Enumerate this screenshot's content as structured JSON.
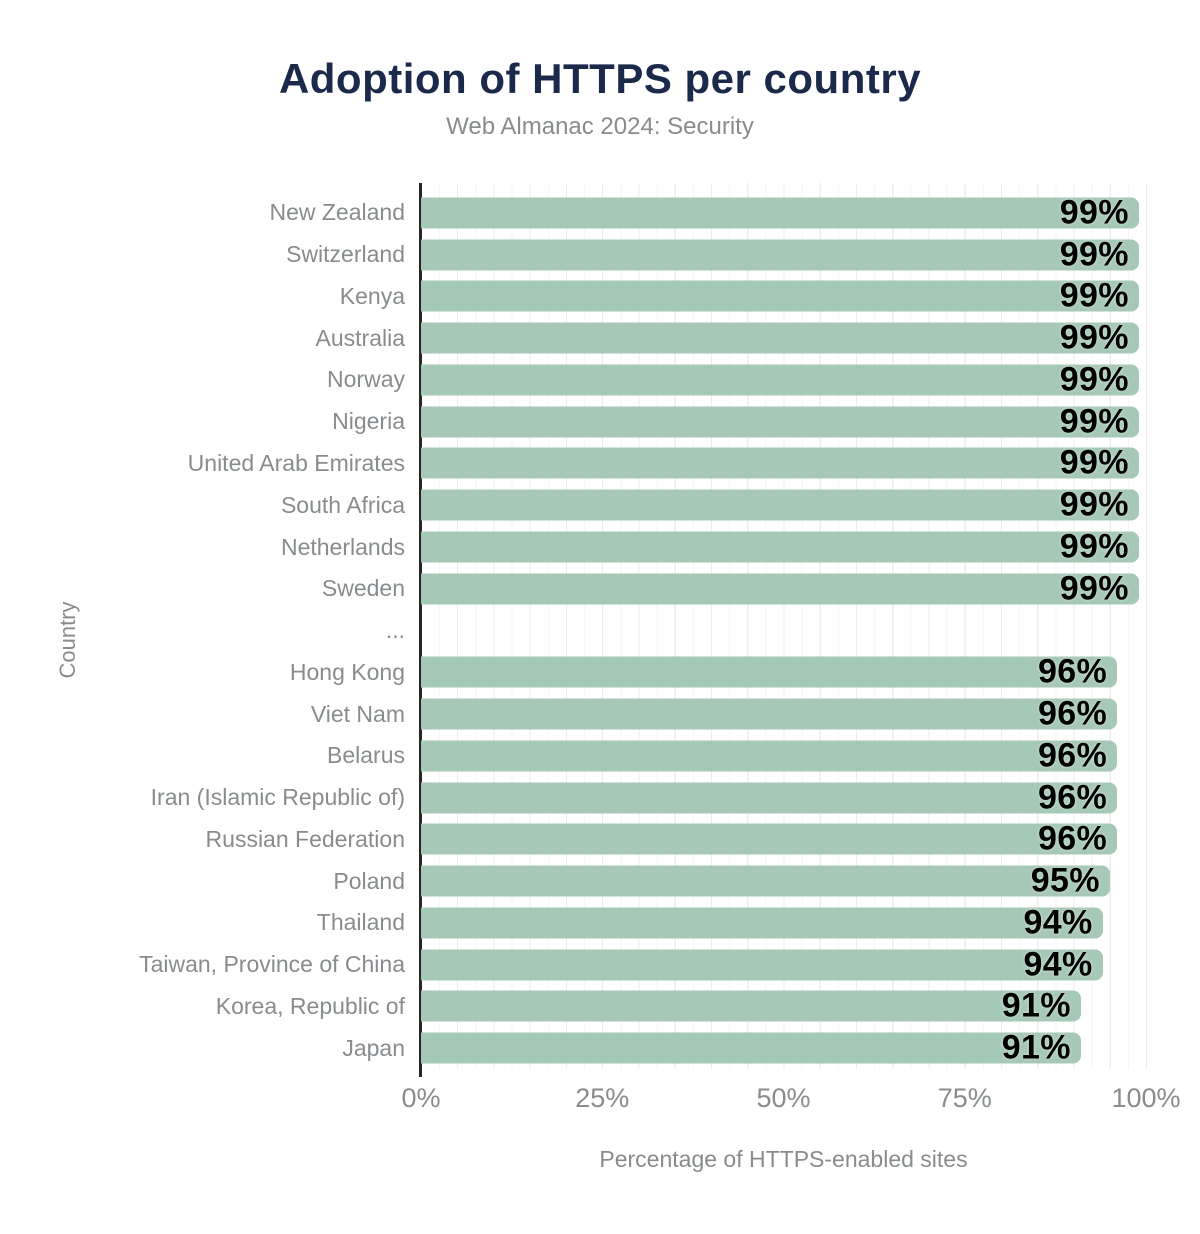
{
  "title": "Adoption of HTTPS per country",
  "subtitle": "Web Almanac 2024: Security",
  "chart_data": {
    "type": "bar",
    "orientation": "horizontal",
    "title": "Adoption of HTTPS per country",
    "subtitle": "Web Almanac 2024: Security",
    "xlabel": "Percentage of HTTPS-enabled sites",
    "ylabel": "Country",
    "xlim": [
      0,
      100
    ],
    "x_tick_labels": [
      "0%",
      "25%",
      "50%",
      "75%",
      "100%"
    ],
    "grid": "vertical gridlines every 5%",
    "legend": "none",
    "categories": [
      "New Zealand",
      "Switzerland",
      "Kenya",
      "Australia",
      "Norway",
      "Nigeria",
      "United Arab Emirates",
      "South Africa",
      "Netherlands",
      "Sweden",
      "...",
      "Hong Kong",
      "Viet Nam",
      "Belarus",
      "Iran (Islamic Republic of)",
      "Russian Federation",
      "Poland",
      "Thailand",
      "Taiwan, Province of China",
      "Korea, Republic of",
      "Japan"
    ],
    "values": [
      99,
      99,
      99,
      99,
      99,
      99,
      99,
      99,
      99,
      99,
      null,
      96,
      96,
      96,
      96,
      96,
      95,
      94,
      94,
      91,
      91
    ],
    "value_labels": [
      "99%",
      "99%",
      "99%",
      "99%",
      "99%",
      "99%",
      "99%",
      "99%",
      "99%",
      "99%",
      "",
      "96%",
      "96%",
      "96%",
      "96%",
      "96%",
      "95%",
      "94%",
      "94%",
      "91%",
      "91%"
    ]
  },
  "colors": {
    "bar": "#a6c8b7",
    "title": "#1b2a4a",
    "muted_text": "#888c8e",
    "axis_line": "#262626",
    "gridline": "#ededed",
    "value_label": "#000000",
    "background": "#ffffff"
  }
}
